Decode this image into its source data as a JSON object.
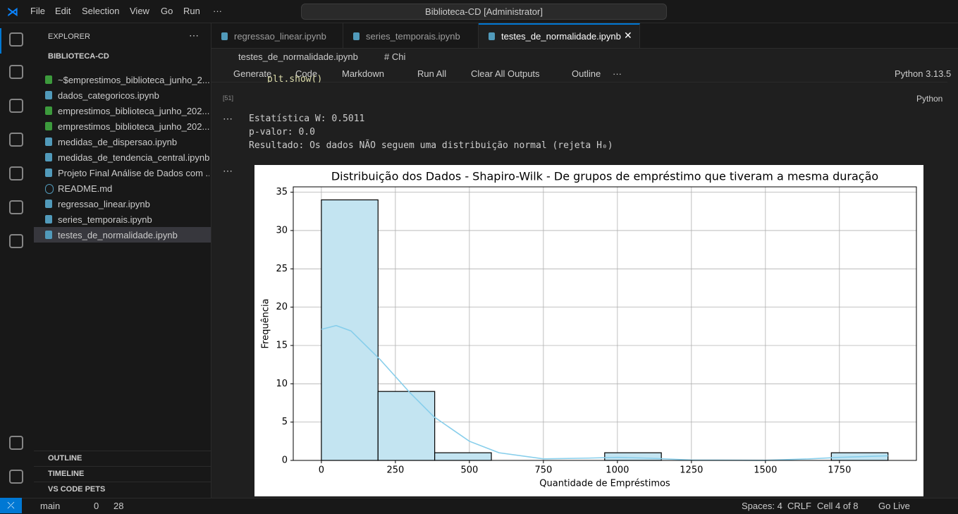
{
  "menu": [
    "File",
    "Edit",
    "Selection",
    "View",
    "Go",
    "Run",
    "···"
  ],
  "window_title": "Biblioteca-CD [Administrator]",
  "explorer": {
    "title": "EXPLORER",
    "folder": "BIBLIOTECA-CD",
    "files": [
      "~$emprestimos_biblioteca_junho_2...",
      "dados_categoricos.ipynb",
      "emprestimos_biblioteca_junho_202...",
      "emprestimos_biblioteca_junho_202...",
      "medidas_de_dispersao.ipynb",
      "medidas_de_tendencia_central.ipynb",
      "Projeto Final Análise de Dados com ...",
      "README.md",
      "regressao_linear.ipynb",
      "series_temporais.ipynb",
      "testes_de_normalidade.ipynb"
    ],
    "sections": [
      "OUTLINE",
      "TIMELINE",
      "VS CODE PETS"
    ]
  },
  "tabs": [
    "regressao_linear.ipynb",
    "series_temporais.ipynb",
    "testes_de_normalidade.ipynb"
  ],
  "breadcrumb": [
    "testes_de_normalidade.ipynb",
    "# Chi"
  ],
  "toolbar": [
    "Generate",
    "Code",
    "Markdown",
    "Run All",
    "Clear All Outputs",
    "Outline",
    "···"
  ],
  "kernel": "Python 3.13.5",
  "cell": {
    "exec_count": "[51]",
    "code": "plt.show()",
    "language": "Python"
  },
  "output": {
    "lines": [
      "Estatística W: 0.5011",
      "p-valor: 0.0",
      "Resultado: Os dados NÃO seguem uma distribuição normal (rejeta H₀)"
    ]
  },
  "chart_data": {
    "type": "histogram",
    "title": "Distribuição dos Dados - Shapiro-Wilk - De grupos de empréstimo que tiveram a mesma duração",
    "x_label": "Quantidade de Empréstimos",
    "y_label": "Frequência",
    "bins": [
      0,
      191.4,
      382.8,
      574.2,
      765.6,
      957,
      1148.4,
      1339.8,
      1531.2,
      1722.6,
      1914
    ],
    "values": [
      34,
      9,
      1,
      0,
      0,
      1,
      0,
      0,
      0,
      1
    ],
    "color": "#c3e4f1",
    "edge_color": "#000000",
    "kde": {
      "color": "#87ceeb",
      "x": [
        0,
        50,
        100,
        200,
        300,
        380,
        500,
        600,
        750,
        900,
        1000,
        1100,
        1250,
        1500,
        1650,
        1750,
        1914
      ],
      "y": [
        17.1,
        17.6,
        16.9,
        13.1,
        8.8,
        5.7,
        2.5,
        1.0,
        0.2,
        0.3,
        0.4,
        0.3,
        0.05,
        0.02,
        0.2,
        0.4,
        0.6
      ]
    },
    "xlim": [
      -95,
      2010
    ],
    "ylim": [
      0,
      35.7
    ],
    "xticks": [
      0,
      250,
      500,
      750,
      1000,
      1250,
      1500,
      1750
    ],
    "yticks": [
      0,
      5,
      10,
      15,
      20,
      25,
      30,
      35
    ],
    "grid": true
  },
  "status": {
    "branch": "main",
    "errors": "0",
    "warnings": "28",
    "items": [
      "Spaces: 4",
      "CRLF",
      "Cell 4 of 8",
      "Go Live"
    ]
  }
}
